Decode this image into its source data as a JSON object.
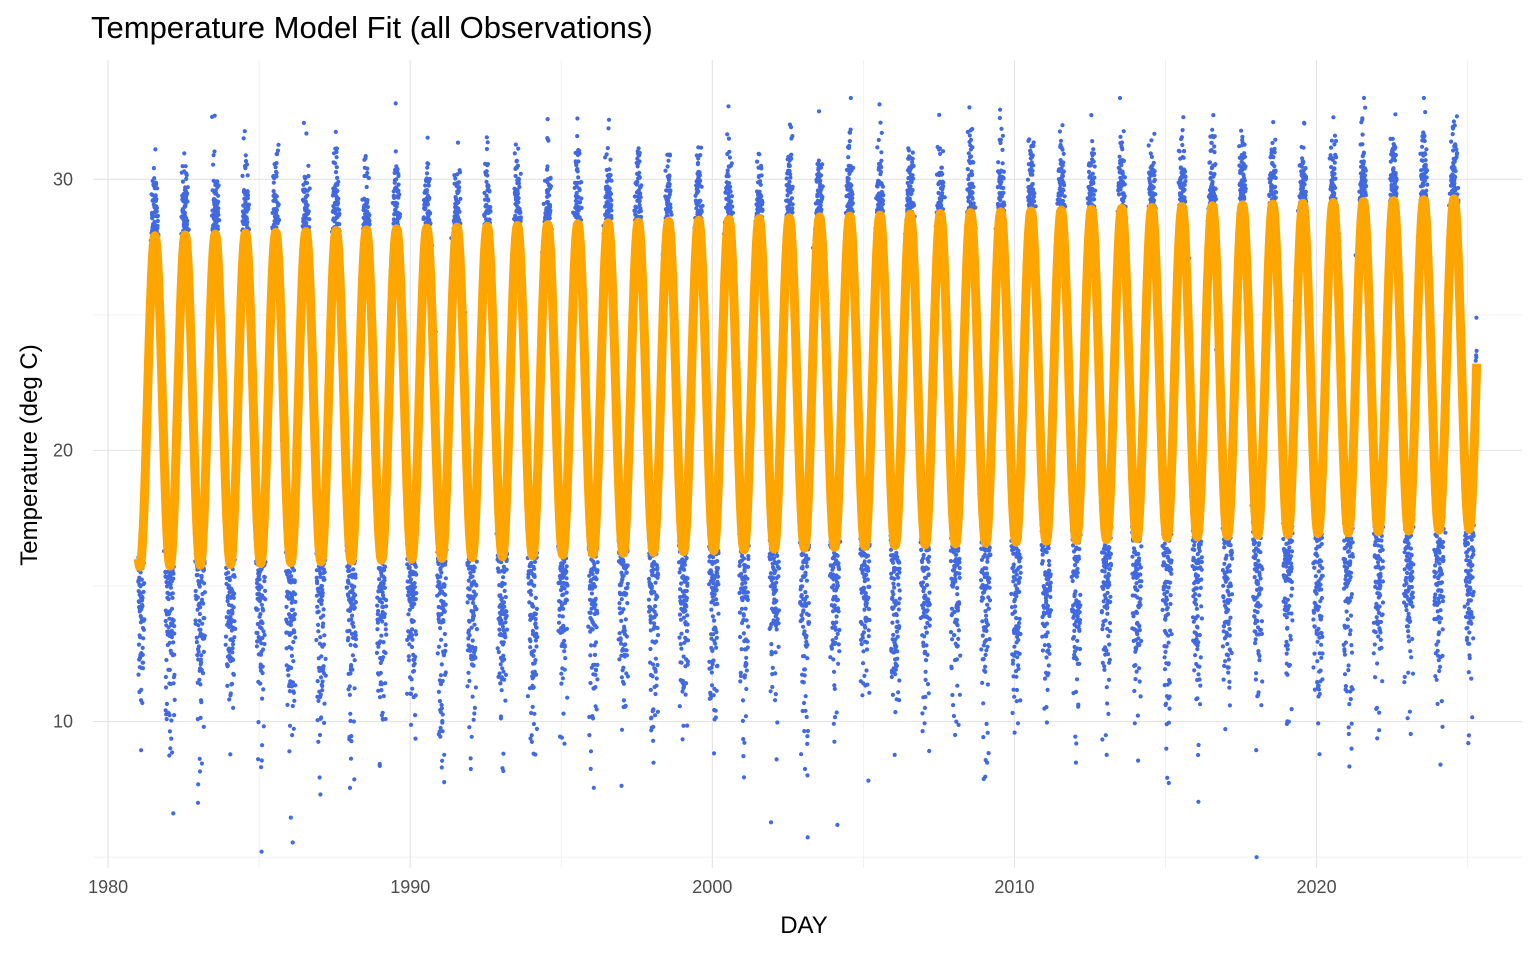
{
  "chart_data": {
    "type": "scatter",
    "title": "Temperature Model Fit (all Observations)",
    "xlabel": "DAY",
    "ylabel": "Temperature (deg C)",
    "xlim": [
      1979.5,
      2026.8
    ],
    "ylim": [
      4.6,
      34.4
    ],
    "x_ticks": [
      1980,
      1990,
      2000,
      2010,
      2020
    ],
    "x_tick_labels": [
      "1980",
      "1990",
      "2000",
      "2010",
      "2020"
    ],
    "y_ticks": [
      10,
      20,
      30
    ],
    "y_tick_labels": [
      "10",
      "20",
      "30"
    ],
    "y_minor_gridlines": [
      5,
      15,
      25
    ],
    "grid": true,
    "legend": "none",
    "series": [
      {
        "kind": "points",
        "color": "#4169E1",
        "x_range": [
          1981.0,
          2025.3
        ],
        "observations_per_year": 365,
        "seasonal_summer_peak_c": [
          30.5,
          33.0
        ],
        "seasonal_winter_low_c": [
          5.0,
          16.0
        ]
      },
      {
        "kind": "line",
        "color": "#FFA500",
        "x_range": [
          1981.0,
          2025.3
        ],
        "model": {
          "mean_start_c": 21.8,
          "mean_end_c": 23.2,
          "amplitude_start_c": 6.1,
          "amplitude_end_c": 6.1,
          "period_years": 1.0,
          "peak_month": "July"
        },
        "visible_peaks": [
          {
            "x": 1981.6,
            "y": 28.0
          },
          {
            "x": 1985.6,
            "y": 28.0
          },
          {
            "x": 1990.6,
            "y": 28.2
          },
          {
            "x": 1995.6,
            "y": 28.4
          },
          {
            "x": 2000.6,
            "y": 28.6
          },
          {
            "x": 2005.6,
            "y": 28.8
          },
          {
            "x": 2010.6,
            "y": 29.0
          },
          {
            "x": 2015.6,
            "y": 29.1
          },
          {
            "x": 2020.6,
            "y": 29.3
          },
          {
            "x": 2024.6,
            "y": 29.4
          }
        ],
        "visible_troughs": [
          {
            "x": 1982.1,
            "y": 15.7
          },
          {
            "x": 1990.1,
            "y": 16.0
          },
          {
            "x": 2000.1,
            "y": 16.3
          },
          {
            "x": 2010.1,
            "y": 16.7
          },
          {
            "x": 2020.1,
            "y": 17.0
          },
          {
            "x": 2025.1,
            "y": 17.2
          }
        ]
      }
    ]
  }
}
